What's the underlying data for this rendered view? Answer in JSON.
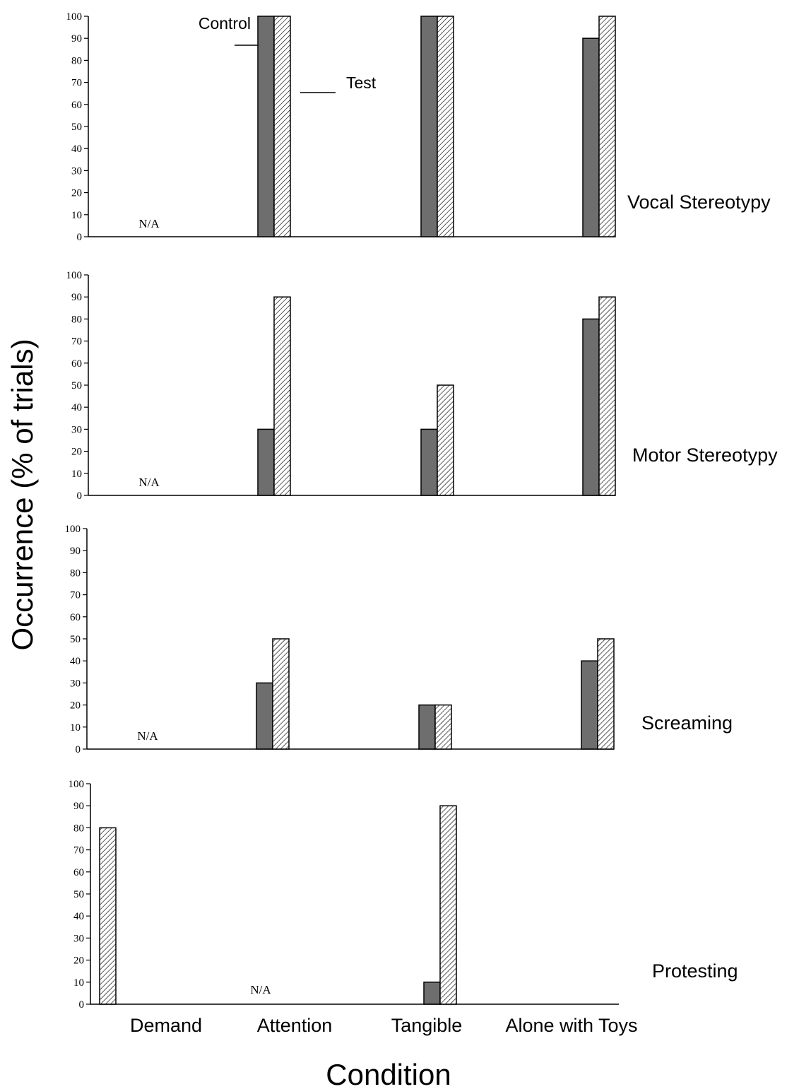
{
  "chart_data": {
    "type": "bar",
    "ylabel": "Occurrence (% of trials)",
    "xlabel": "Condition",
    "categories": [
      "Demand",
      "Attention",
      "Tangible",
      "Alone with Toys"
    ],
    "ylim": [
      0,
      100
    ],
    "yticks": [
      0,
      10,
      20,
      30,
      40,
      50,
      60,
      70,
      80,
      90,
      100
    ],
    "na_text": "N/A",
    "legend": {
      "control": "Control",
      "test": "Test"
    },
    "colors": {
      "control": "#6e6e6e",
      "test_hatch": "#000000",
      "background": "#ffffff"
    },
    "panels": [
      {
        "label": "Vocal Stereotypy",
        "na_category": "Demand",
        "series": [
          {
            "name": "Control",
            "values": [
              null,
              100,
              100,
              90
            ]
          },
          {
            "name": "Test",
            "values": [
              null,
              100,
              100,
              100
            ]
          }
        ]
      },
      {
        "label": "Motor Stereotypy",
        "na_category": "Demand",
        "series": [
          {
            "name": "Control",
            "values": [
              null,
              30,
              30,
              80
            ]
          },
          {
            "name": "Test",
            "values": [
              null,
              90,
              50,
              90
            ]
          }
        ]
      },
      {
        "label": "Screaming",
        "na_category": "Demand",
        "series": [
          {
            "name": "Control",
            "values": [
              null,
              30,
              20,
              40
            ]
          },
          {
            "name": "Test",
            "values": [
              null,
              50,
              20,
              50
            ]
          }
        ]
      },
      {
        "label": "Protesting",
        "na_category": "Attention",
        "series": [
          {
            "name": "Control",
            "values": [
              null,
              null,
              10,
              null
            ]
          },
          {
            "name": "Test",
            "values": [
              80,
              null,
              90,
              null
            ]
          }
        ]
      }
    ]
  }
}
